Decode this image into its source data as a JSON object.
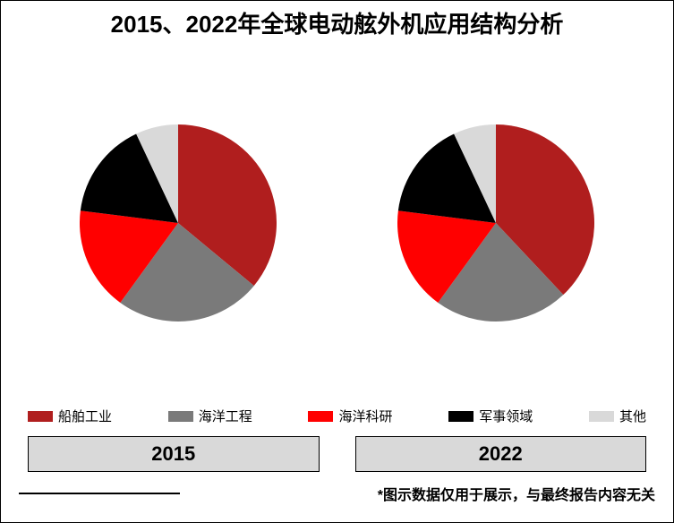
{
  "title": "2015、2022年全球电动舷外机应用结构分析",
  "title_fontsize": 26,
  "background_color": "#ffffff",
  "categories": [
    {
      "label": "船舶工业",
      "color": "#b01e1e"
    },
    {
      "label": "海洋工程",
      "color": "#7a7a7a"
    },
    {
      "label": "海洋科研",
      "color": "#ff0000"
    },
    {
      "label": "军事领域",
      "color": "#000000"
    },
    {
      "label": "其他",
      "color": "#d9d9d9"
    }
  ],
  "legend": {
    "marker_width": 28,
    "marker_height": 12,
    "label_fontsize": 15,
    "position": "bottom"
  },
  "pies": [
    {
      "year_label": "2015",
      "type": "pie",
      "radius": 110,
      "start_angle_deg": -90,
      "direction": "clockwise",
      "slices": [
        {
          "label": "船舶工业",
          "value": 36,
          "color": "#b01e1e"
        },
        {
          "label": "海洋工程",
          "value": 24,
          "color": "#7a7a7a"
        },
        {
          "label": "海洋科研",
          "value": 17,
          "color": "#ff0000"
        },
        {
          "label": "军事领域",
          "value": 16,
          "color": "#000000"
        },
        {
          "label": "其他",
          "value": 7,
          "color": "#d9d9d9"
        }
      ]
    },
    {
      "year_label": "2022",
      "type": "pie",
      "radius": 110,
      "start_angle_deg": -90,
      "direction": "clockwise",
      "slices": [
        {
          "label": "船舶工业",
          "value": 38,
          "color": "#b01e1e"
        },
        {
          "label": "海洋工程",
          "value": 22,
          "color": "#7a7a7a"
        },
        {
          "label": "海洋科研",
          "value": 17,
          "color": "#ff0000"
        },
        {
          "label": "军事领域",
          "value": 16,
          "color": "#000000"
        },
        {
          "label": "其他",
          "value": 7,
          "color": "#d9d9d9"
        }
      ]
    }
  ],
  "year_box": {
    "background_color": "#d9d9d9",
    "border_color": "#000000",
    "fontsize": 22
  },
  "footer_note": "*图示数据仅用于展示，与最终报告内容无关",
  "footer_note_fontsize": 16
}
